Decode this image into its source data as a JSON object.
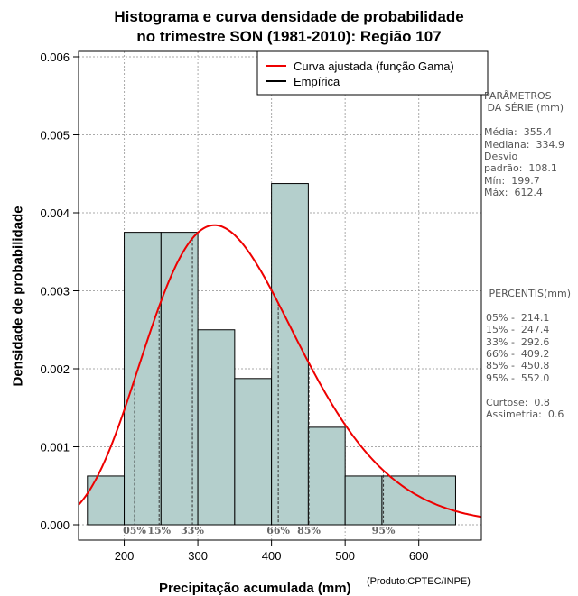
{
  "title_line1": "Histograma e curva densidade de probabilidade",
  "title_line2": "no trimestre SON (1981-2010): Região 107",
  "colors": {
    "bar_fill": "#b4cfcc",
    "curve": "#ee0000",
    "empirical": "#000000",
    "grid": "#aaaaaa",
    "percentile_text": "#666666"
  },
  "chart_data": {
    "type": "bar",
    "xlabel": "Precipitação acumulada (mm)",
    "ylabel": "Densidade de probabilidade",
    "xlim": [
      138,
      685
    ],
    "ylim": [
      0,
      0.0061
    ],
    "x_ticks": [
      200,
      300,
      400,
      500,
      600
    ],
    "y_ticks": [
      "0.000",
      "0.001",
      "0.002",
      "0.003",
      "0.004",
      "0.005",
      "0.006"
    ],
    "y_tick_values": [
      0,
      0.001,
      0.002,
      0.003,
      0.004,
      0.005,
      0.006
    ],
    "bins": [
      {
        "from": 150,
        "to": 200,
        "density": 0.000625
      },
      {
        "from": 200,
        "to": 250,
        "density": 0.00375
      },
      {
        "from": 250,
        "to": 300,
        "density": 0.00375
      },
      {
        "from": 300,
        "to": 350,
        "density": 0.0025
      },
      {
        "from": 350,
        "to": 400,
        "density": 0.001875
      },
      {
        "from": 400,
        "to": 450,
        "density": 0.004375
      },
      {
        "from": 450,
        "to": 500,
        "density": 0.00125
      },
      {
        "from": 500,
        "to": 550,
        "density": 0.000625
      },
      {
        "from": 550,
        "to": 650,
        "density": 0.000625
      }
    ],
    "gamma_fit": {
      "mean": 355.4,
      "sd": 108.1
    },
    "percentiles": [
      {
        "label": "05%",
        "value": 214.1
      },
      {
        "label": "15%",
        "value": 247.4
      },
      {
        "label": "33%",
        "value": 292.6
      },
      {
        "label": "66%",
        "value": 409.2
      },
      {
        "label": "85%",
        "value": 450.8
      },
      {
        "label": "95%",
        "value": 552.0
      }
    ],
    "legend": [
      {
        "label": "Curva ajustada (função Gama)",
        "color": "#ee0000"
      },
      {
        "label": "Empírica",
        "color": "#000000"
      }
    ],
    "legend_position": "top-right"
  },
  "stats_panel": "PARÂMETROS\n DA SÉRIE (mm)\n\nMédia:  355.4\nMediana:  334.9\nDesvio\npadrão:  108.1\nMín:  199.7\nMáx:  612.4",
  "percentis_panel": " PERCENTIS(mm)\n\n05% -  214.1\n15% -  247.4\n33% -  292.6\n66% -  409.2\n85% -  450.8\n95% -  552.0\n\nCurtose:  0.8\nAssimetria:  0.6",
  "credit": "(Produto:CPTEC/INPE)"
}
